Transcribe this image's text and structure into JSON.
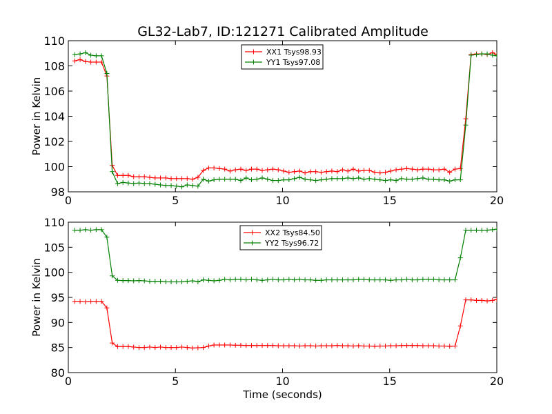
{
  "figure": {
    "title": "GL32-Lab7, ID:121271 Calibrated Amplitude"
  },
  "chart_data": [
    {
      "type": "line",
      "title": "GL32-Lab7, ID:121271 Calibrated Amplitude",
      "xlabel": "",
      "ylabel": "Power in Kelvin",
      "xlim": [
        0,
        20
      ],
      "ylim": [
        98,
        110
      ],
      "xticks": [
        "0",
        "5",
        "10",
        "15",
        "20"
      ],
      "yticks": [
        "98",
        "100",
        "102",
        "104",
        "106",
        "108",
        "110"
      ],
      "legend_position": "top-center",
      "x": [
        0.3,
        0.55,
        0.8,
        1.05,
        1.3,
        1.55,
        1.8,
        2.05,
        2.3,
        2.55,
        2.8,
        3.05,
        3.3,
        3.55,
        3.8,
        4.05,
        4.3,
        4.55,
        4.8,
        5.05,
        5.3,
        5.55,
        5.8,
        6.05,
        6.3,
        6.55,
        6.8,
        7.05,
        7.3,
        7.55,
        7.8,
        8.05,
        8.3,
        8.55,
        8.8,
        9.05,
        9.3,
        9.55,
        9.8,
        10.05,
        10.3,
        10.55,
        10.8,
        11.05,
        11.3,
        11.55,
        11.8,
        12.05,
        12.3,
        12.55,
        12.8,
        13.05,
        13.3,
        13.55,
        13.8,
        14.05,
        14.3,
        14.55,
        14.8,
        15.05,
        15.3,
        15.55,
        15.8,
        16.05,
        16.3,
        16.55,
        16.8,
        17.05,
        17.3,
        17.55,
        17.8,
        18.05,
        18.3,
        18.55,
        18.8,
        19.05,
        19.3,
        19.55,
        19.8,
        20.0
      ],
      "series": [
        {
          "name": "XX1 Tsys98.93",
          "color": "#ff0000",
          "values": [
            108.4,
            108.5,
            108.35,
            108.3,
            108.3,
            108.3,
            107.2,
            100.1,
            99.3,
            99.3,
            99.3,
            99.2,
            99.2,
            99.2,
            99.15,
            99.1,
            99.1,
            99.1,
            99.05,
            99.05,
            99.05,
            99.05,
            99.0,
            99.15,
            99.7,
            99.9,
            99.9,
            99.85,
            99.8,
            99.65,
            99.75,
            99.8,
            99.7,
            99.8,
            99.8,
            99.7,
            99.75,
            99.8,
            99.75,
            99.65,
            99.55,
            99.6,
            99.65,
            99.5,
            99.6,
            99.6,
            99.55,
            99.6,
            99.65,
            99.6,
            99.75,
            99.65,
            99.8,
            99.65,
            99.7,
            99.7,
            99.55,
            99.5,
            99.55,
            99.65,
            99.75,
            99.8,
            99.85,
            99.8,
            99.75,
            99.8,
            99.8,
            99.75,
            99.75,
            99.8,
            99.55,
            99.8,
            99.85,
            103.8,
            108.9,
            108.95,
            108.95,
            108.9,
            109.05,
            108.9
          ]
        },
        {
          "name": "YY1 Tsys97.08",
          "color": "#008000",
          "values": [
            108.9,
            108.95,
            109.05,
            108.85,
            108.8,
            108.8,
            107.4,
            99.6,
            98.65,
            98.75,
            98.7,
            98.65,
            98.7,
            98.65,
            98.65,
            98.6,
            98.55,
            98.5,
            98.5,
            98.45,
            98.4,
            98.55,
            98.5,
            98.45,
            99.0,
            98.85,
            98.95,
            99.0,
            99.0,
            99.0,
            99.0,
            98.9,
            99.1,
            98.95,
            99.0,
            99.1,
            99.0,
            98.9,
            98.9,
            98.95,
            98.95,
            99.05,
            99.15,
            99.0,
            98.95,
            98.9,
            98.95,
            99.0,
            99.05,
            99.05,
            99.05,
            99.1,
            99.05,
            99.1,
            99.0,
            99.05,
            99.0,
            98.95,
            98.9,
            98.95,
            98.9,
            99.05,
            99.0,
            99.0,
            99.05,
            99.1,
            99.0,
            99.0,
            98.95,
            98.95,
            98.85,
            98.95,
            98.95,
            103.3,
            108.85,
            108.9,
            108.95,
            108.95,
            108.85,
            108.8
          ]
        }
      ]
    },
    {
      "type": "line",
      "title": "",
      "xlabel": "Time (seconds)",
      "ylabel": "Power in Kelvin",
      "xlim": [
        0,
        20
      ],
      "ylim": [
        80,
        110
      ],
      "xticks": [
        "0",
        "5",
        "10",
        "15",
        "20"
      ],
      "yticks": [
        "80",
        "85",
        "90",
        "95",
        "100",
        "105",
        "110"
      ],
      "legend_position": "top-center",
      "x": [
        0.3,
        0.55,
        0.8,
        1.05,
        1.3,
        1.55,
        1.8,
        2.05,
        2.3,
        2.55,
        2.8,
        3.05,
        3.3,
        3.55,
        3.8,
        4.05,
        4.3,
        4.55,
        4.8,
        5.05,
        5.3,
        5.55,
        5.8,
        6.05,
        6.3,
        6.55,
        6.8,
        7.05,
        7.3,
        7.55,
        7.8,
        8.05,
        8.3,
        8.55,
        8.8,
        9.05,
        9.3,
        9.55,
        9.8,
        10.05,
        10.3,
        10.55,
        10.8,
        11.05,
        11.3,
        11.55,
        11.8,
        12.05,
        12.3,
        12.55,
        12.8,
        13.05,
        13.3,
        13.55,
        13.8,
        14.05,
        14.3,
        14.55,
        14.8,
        15.05,
        15.3,
        15.55,
        15.8,
        16.05,
        16.3,
        16.55,
        16.8,
        17.05,
        17.3,
        17.55,
        17.8,
        18.05,
        18.3,
        18.55,
        18.8,
        19.05,
        19.3,
        19.55,
        19.8,
        20.0
      ],
      "series": [
        {
          "name": "XX2 Tsys84.50",
          "color": "#ff0000",
          "values": [
            94.2,
            94.2,
            94.1,
            94.2,
            94.2,
            94.2,
            92.9,
            85.9,
            85.2,
            85.2,
            85.2,
            85.1,
            85.0,
            85.0,
            85.1,
            85.0,
            85.1,
            85.0,
            85.0,
            85.0,
            85.1,
            85.0,
            84.9,
            84.95,
            85.0,
            85.3,
            85.5,
            85.5,
            85.5,
            85.5,
            85.45,
            85.45,
            85.4,
            85.4,
            85.4,
            85.4,
            85.4,
            85.4,
            85.35,
            85.35,
            85.35,
            85.35,
            85.3,
            85.35,
            85.35,
            85.3,
            85.35,
            85.35,
            85.35,
            85.4,
            85.35,
            85.35,
            85.3,
            85.35,
            85.3,
            85.3,
            85.25,
            85.3,
            85.3,
            85.35,
            85.35,
            85.4,
            85.4,
            85.4,
            85.4,
            85.35,
            85.35,
            85.35,
            85.3,
            85.3,
            85.25,
            85.3,
            89.3,
            94.5,
            94.5,
            94.4,
            94.4,
            94.3,
            94.4,
            94.6
          ]
        },
        {
          "name": "YY2 Tsys96.72",
          "color": "#008000",
          "values": [
            108.4,
            108.4,
            108.5,
            108.4,
            108.5,
            108.5,
            107.0,
            99.3,
            98.4,
            98.35,
            98.35,
            98.3,
            98.35,
            98.3,
            98.2,
            98.2,
            98.2,
            98.1,
            98.1,
            98.1,
            98.1,
            98.2,
            98.3,
            98.1,
            98.5,
            98.4,
            98.3,
            98.4,
            98.6,
            98.5,
            98.6,
            98.6,
            98.5,
            98.6,
            98.5,
            98.4,
            98.5,
            98.6,
            98.5,
            98.5,
            98.6,
            98.5,
            98.6,
            98.5,
            98.5,
            98.4,
            98.4,
            98.5,
            98.5,
            98.5,
            98.5,
            98.5,
            98.5,
            98.6,
            98.6,
            98.5,
            98.5,
            98.5,
            98.5,
            98.4,
            98.5,
            98.5,
            98.6,
            98.5,
            98.5,
            98.6,
            98.6,
            98.6,
            98.5,
            98.5,
            98.5,
            98.5,
            102.9,
            108.4,
            108.4,
            108.4,
            108.4,
            108.4,
            108.5,
            108.6
          ]
        }
      ]
    }
  ]
}
